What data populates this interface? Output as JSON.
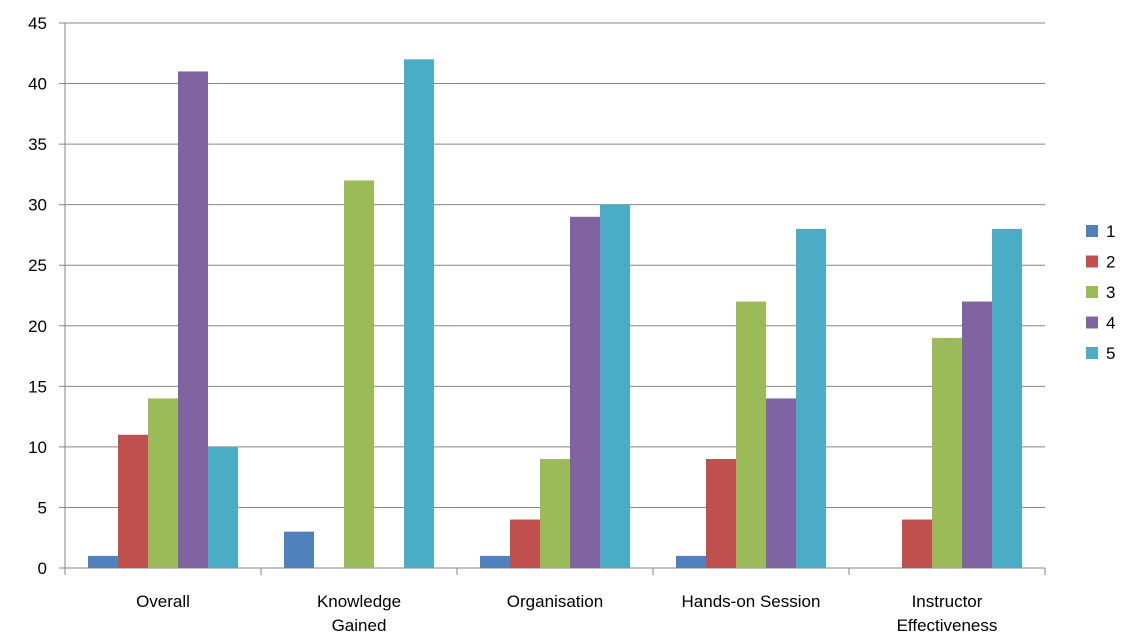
{
  "chart_data": {
    "type": "bar",
    "categories": [
      "Overall",
      "Knowledge Gained",
      "Organisation",
      "Hands-on Session",
      "Instructor Effectiveness"
    ],
    "category_lines": [
      [
        "Overall"
      ],
      [
        "Knowledge",
        "Gained"
      ],
      [
        "Organisation"
      ],
      [
        "Hands-on Session"
      ],
      [
        "Instructor",
        "Effectiveness"
      ]
    ],
    "series": [
      {
        "name": "1",
        "color": "#4F81BD",
        "values": [
          1,
          3,
          1,
          1,
          0
        ]
      },
      {
        "name": "2",
        "color": "#C0504D",
        "values": [
          11,
          0,
          4,
          9,
          4
        ]
      },
      {
        "name": "3",
        "color": "#9BBB59",
        "values": [
          14,
          32,
          9,
          22,
          19
        ]
      },
      {
        "name": "4",
        "color": "#8064A2",
        "values": [
          41,
          0,
          29,
          14,
          22
        ]
      },
      {
        "name": "5",
        "color": "#4BACC6",
        "values": [
          10,
          42,
          30,
          28,
          28
        ]
      }
    ],
    "ylim": [
      0,
      45
    ],
    "yticks": [
      0,
      5,
      10,
      15,
      20,
      25,
      30,
      35,
      40,
      45
    ],
    "grid": true,
    "legend": "right",
    "title": "",
    "xlabel": "",
    "ylabel": ""
  }
}
